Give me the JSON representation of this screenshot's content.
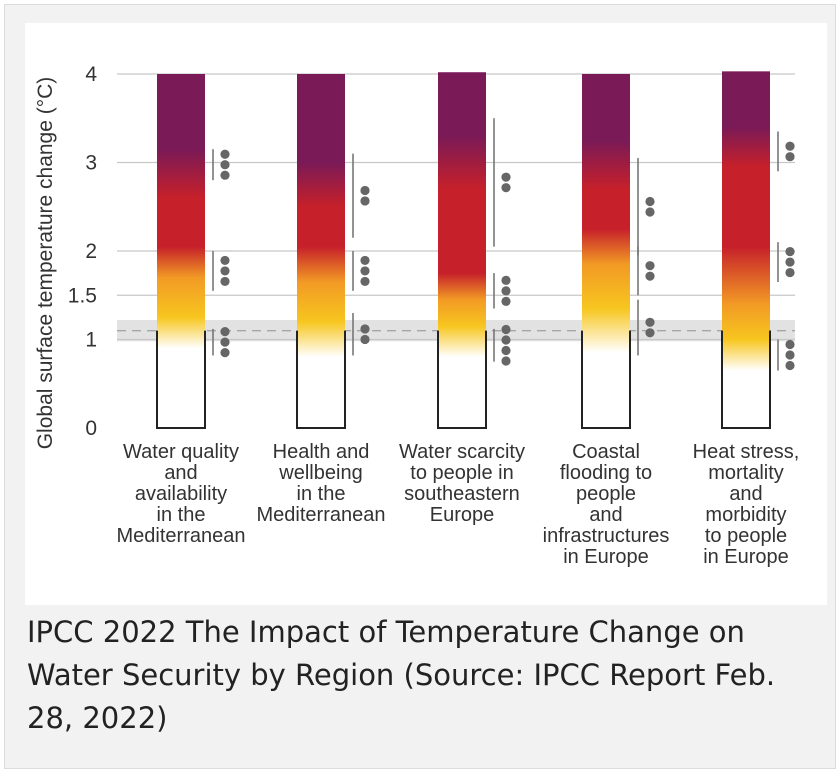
{
  "caption": "IPCC 2022 The Impact of Temperature Change on Water Security by Region (Source: IPCC Report Feb. 28, 2022)",
  "chart_data": {
    "type": "bar",
    "title": "",
    "ylabel": "Global surface temperature change (°C)",
    "xlabel": "",
    "ylim": [
      0,
      4
    ],
    "yticks": [
      0,
      1,
      1.5,
      2,
      3,
      4
    ],
    "ytick_labels": [
      "0",
      "1",
      "1.5",
      "2",
      "3",
      "4"
    ],
    "current_warming_band": {
      "center": 1.1,
      "low": 0.98,
      "high": 1.22
    },
    "colors": {
      "white": "#ffffff",
      "yellow": "#f7c61f",
      "orange": "#f29a25",
      "red": "#c6202a",
      "purple": "#7a1a57",
      "band": "#e2e2e2",
      "dots": "#666666"
    },
    "categories": [
      {
        "label": [
          "Water quality",
          "and",
          "availability",
          "in the",
          "Mediterranean"
        ],
        "bottom": 0,
        "top": 4,
        "gradient": [
          {
            "t": 0.9,
            "c": "white"
          },
          {
            "t": 1.25,
            "c": "yellow"
          },
          {
            "t": 1.7,
            "c": "orange"
          },
          {
            "t": 2.05,
            "c": "red"
          },
          {
            "t": 2.6,
            "c": "red"
          },
          {
            "t": 3.15,
            "c": "purple"
          }
        ],
        "confidence": [
          {
            "from": 0.82,
            "to": 1.12,
            "dots": 3
          },
          {
            "from": 1.55,
            "to": 2.0,
            "dots": 3
          },
          {
            "from": 2.8,
            "to": 3.15,
            "dots": 3
          }
        ]
      },
      {
        "label": [
          "Health and",
          "wellbeing",
          "in the",
          "Mediterranean"
        ],
        "bottom": 0,
        "top": 4,
        "gradient": [
          {
            "t": 0.8,
            "c": "white"
          },
          {
            "t": 1.2,
            "c": "yellow"
          },
          {
            "t": 1.65,
            "c": "orange"
          },
          {
            "t": 2.05,
            "c": "red"
          },
          {
            "t": 2.5,
            "c": "red"
          },
          {
            "t": 3.0,
            "c": "purple"
          }
        ],
        "confidence": [
          {
            "from": 0.82,
            "to": 1.3,
            "dots": 2
          },
          {
            "from": 1.55,
            "to": 2.0,
            "dots": 3
          },
          {
            "from": 2.15,
            "to": 3.1,
            "dots": 2
          }
        ]
      },
      {
        "label": [
          "Water scarcity",
          "to people in",
          "southeastern",
          "Europe"
        ],
        "bottom": 0,
        "top": 4.02,
        "gradient": [
          {
            "t": 0.8,
            "c": "white"
          },
          {
            "t": 1.15,
            "c": "yellow"
          },
          {
            "t": 1.45,
            "c": "orange"
          },
          {
            "t": 1.75,
            "c": "red"
          },
          {
            "t": 2.7,
            "c": "red"
          },
          {
            "t": 3.3,
            "c": "purple"
          }
        ],
        "confidence": [
          {
            "from": 0.75,
            "to": 1.12,
            "dots": 4
          },
          {
            "from": 1.35,
            "to": 1.75,
            "dots": 3
          },
          {
            "from": 2.05,
            "to": 3.5,
            "dots": 2
          }
        ]
      },
      {
        "label": [
          "Coastal",
          "flooding to",
          "people",
          "and",
          "infrastructures",
          "in Europe"
        ],
        "bottom": 0,
        "top": 4,
        "gradient": [
          {
            "t": 0.85,
            "c": "white"
          },
          {
            "t": 1.35,
            "c": "yellow"
          },
          {
            "t": 1.85,
            "c": "orange"
          },
          {
            "t": 2.25,
            "c": "red"
          },
          {
            "t": 2.7,
            "c": "red"
          },
          {
            "t": 3.25,
            "c": "purple"
          }
        ],
        "confidence": [
          {
            "from": 0.82,
            "to": 1.45,
            "dots": 2
          },
          {
            "from": 1.5,
            "to": 2.05,
            "dots": 2
          },
          {
            "from": 1.95,
            "to": 3.05,
            "dots": 2
          }
        ]
      },
      {
        "label": [
          "Heat stress,",
          "mortality",
          "and",
          "morbidity",
          "to people",
          "in Europe"
        ],
        "bottom": 0,
        "top": 4.03,
        "gradient": [
          {
            "t": 0.65,
            "c": "white"
          },
          {
            "t": 1.0,
            "c": "yellow"
          },
          {
            "t": 1.4,
            "c": "orange"
          },
          {
            "t": 2.05,
            "c": "red"
          },
          {
            "t": 2.95,
            "c": "red"
          },
          {
            "t": 3.4,
            "c": "purple"
          }
        ],
        "confidence": [
          {
            "from": 0.65,
            "to": 1.0,
            "dots": 3
          },
          {
            "from": 1.65,
            "to": 2.1,
            "dots": 3
          },
          {
            "from": 2.9,
            "to": 3.35,
            "dots": 2
          }
        ]
      }
    ]
  }
}
